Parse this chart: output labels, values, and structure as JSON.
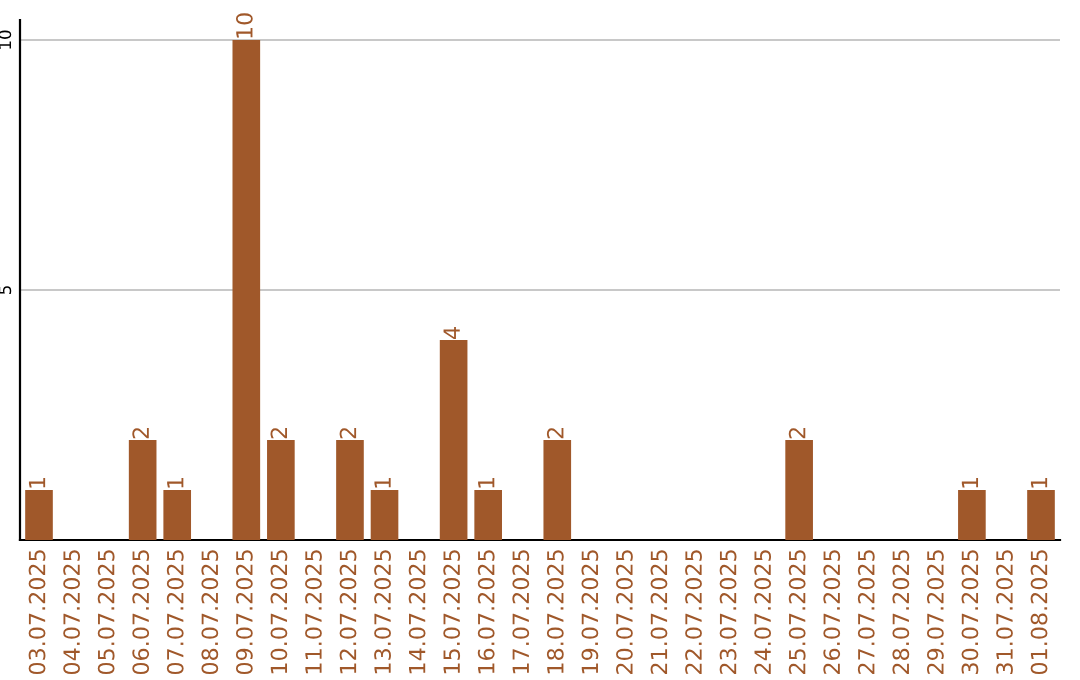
{
  "chart_data": {
    "type": "bar",
    "categories": [
      "03.07.2025",
      "04.07.2025",
      "05.07.2025",
      "06.07.2025",
      "07.07.2025",
      "08.07.2025",
      "09.07.2025",
      "10.07.2025",
      "11.07.2025",
      "12.07.2025",
      "13.07.2025",
      "14.07.2025",
      "15.07.2025",
      "16.07.2025",
      "17.07.2025",
      "18.07.2025",
      "19.07.2025",
      "20.07.2025",
      "21.07.2025",
      "22.07.2025",
      "23.07.2025",
      "24.07.2025",
      "25.07.2025",
      "26.07.2025",
      "27.07.2025",
      "28.07.2025",
      "29.07.2025",
      "30.07.2025",
      "31.07.2025",
      "01.08.2025"
    ],
    "values": [
      1,
      0,
      0,
      2,
      1,
      0,
      10,
      2,
      0,
      2,
      1,
      0,
      4,
      1,
      0,
      2,
      0,
      0,
      0,
      0,
      0,
      0,
      2,
      0,
      0,
      0,
      0,
      1,
      0,
      1
    ],
    "value_labels": [
      "1",
      null,
      null,
      "2",
      "1",
      null,
      "10",
      "2",
      null,
      "2",
      "1",
      null,
      "4",
      "1",
      null,
      "2",
      null,
      null,
      null,
      null,
      null,
      null,
      "2",
      null,
      null,
      null,
      null,
      "1",
      null,
      "1"
    ],
    "color": "#a0582a",
    "ylim": [
      0,
      10.4
    ],
    "yticks": [
      5,
      10
    ],
    "grid": "y"
  }
}
